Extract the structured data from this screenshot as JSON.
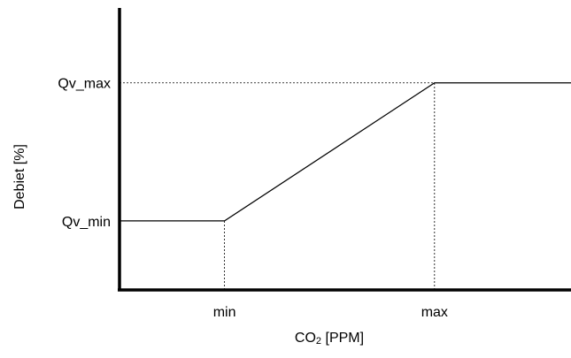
{
  "chart_data": {
    "type": "line",
    "title": "",
    "xlabel": {
      "main": "CO",
      "subscript": "2",
      "suffix": " [PPM]"
    },
    "ylabel": "Debiet [%]",
    "x_ticks": [
      "min",
      "max"
    ],
    "y_ticks": [
      "Qv_min",
      "Qv_max"
    ],
    "x_values": [
      0,
      1,
      3,
      4.3
    ],
    "xlim": [
      0,
      4.3
    ],
    "ylim": [
      0,
      4.2
    ],
    "tick_positions": {
      "min": 1,
      "max": 3,
      "Qv_min": 1,
      "Qv_max": 3
    },
    "series": [
      {
        "x": [
          0,
          1,
          3,
          4.3
        ],
        "y": [
          1,
          1,
          3,
          3
        ]
      }
    ],
    "reference_lines": [
      {
        "from": [
          0,
          3
        ],
        "to": [
          3,
          3
        ]
      },
      {
        "from": [
          1,
          0
        ],
        "to": [
          1,
          1
        ]
      },
      {
        "from": [
          3,
          0
        ],
        "to": [
          3,
          3
        ]
      }
    ],
    "grid": false,
    "legend": "none"
  }
}
